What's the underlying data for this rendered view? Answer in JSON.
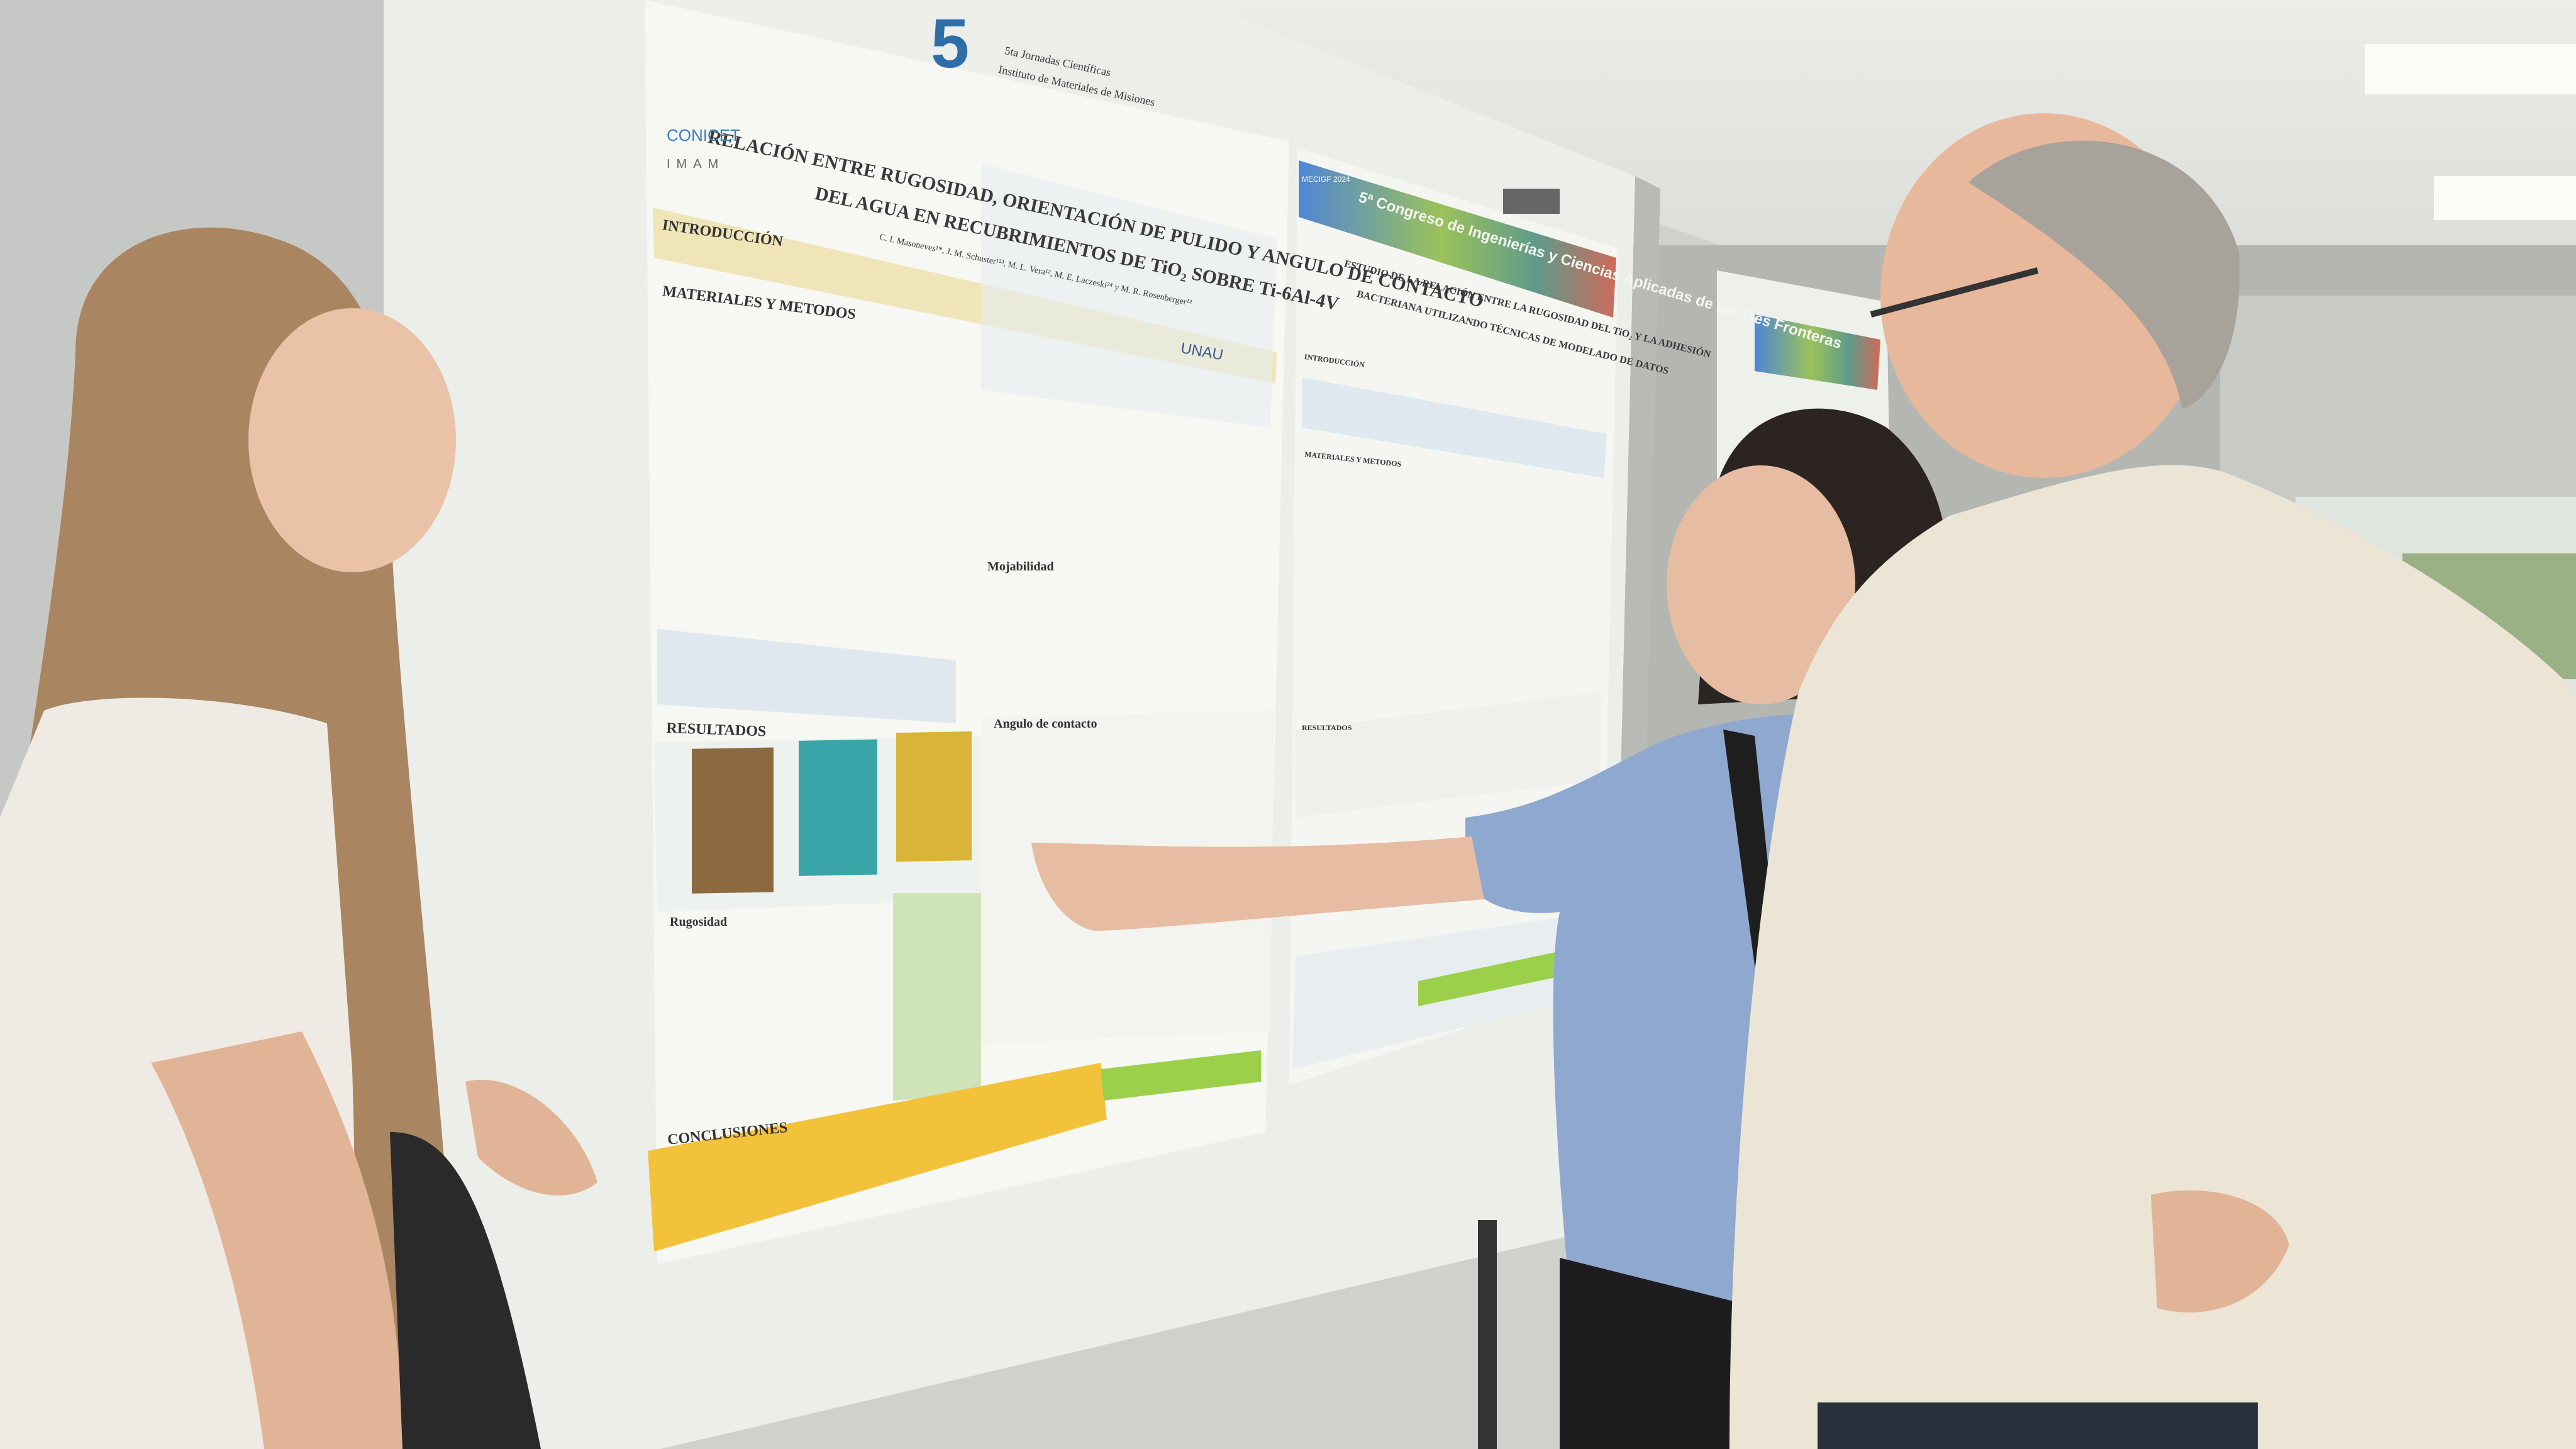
{
  "scene": {
    "description_colors": {
      "wall": "#c9cbc8",
      "board": "#eceeea",
      "ceiling": "#e3e5e1",
      "poster_highlight": "#f1e28a",
      "shirt_left": "#eeeae2",
      "top_middle": "#8fa8cf",
      "shirt_right": "#ece5d6"
    }
  },
  "poster_left": {
    "event_logo": "5",
    "event_name": "5ta Jornadas Científicas",
    "institute": "Instituto de Materiales de Misiones",
    "title_line1": "RELACIÓN ENTRE RUGOSIDAD, ORIENTACIÓN DE PULIDO Y ANGULO DE CONTACTO",
    "title_line2": "DEL AGUA EN RECUBRIMIENTOS DE TiO₂ SOBRE Ti-6Al-4V",
    "authors": "C. I. Masoneves¹*, J. M. Schuster¹²³, M. L. Vera¹², M. E. Laczeski²⁴ y M. R. Rosenberger¹²",
    "logos": [
      "CONICET",
      "IMAM",
      "UNAU"
    ],
    "sections": [
      "INTRODUCCIÓN",
      "MATERIALES Y METODOS",
      "RESULTADOS",
      "Rugosidad",
      "Mojabilidad",
      "Angulo de contacto",
      "CONCLUSIONES"
    ]
  },
  "poster_right": {
    "banner": "5ª Congreso de Ingenierías y Ciencias Aplicadas de las Tres Fronteras",
    "banner_logo": "MECIGF 2024",
    "title_line1": "ESTUDIO DE LA RELACIÓN ENTRE LA RUGOSIDAD DEL TiO₂ Y LA ADHESIÓN",
    "title_line2": "BACTERIANA UTILIZANDO TÉCNICAS DE MODELADO DE DATOS",
    "sections": [
      "INTRODUCCIÓN",
      "MATERIALES Y METODOS",
      "RESULTADOS"
    ]
  }
}
